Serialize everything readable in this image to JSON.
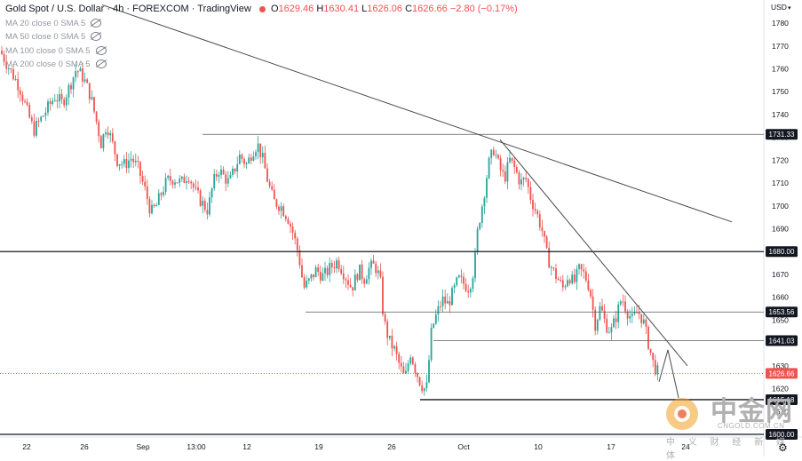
{
  "legend": {
    "symbol": "Gold Spot / U.S. Dollar",
    "interval": "4h",
    "exchange": "FOREXCOM",
    "brand": "TradingView",
    "open_label": "O",
    "open": "1629.46",
    "high_label": "H",
    "high": "1630.41",
    "low_label": "L",
    "low": "1626.06",
    "close_label": "C",
    "close": "1626.66",
    "change": "−2.80 (−0.17%)",
    "indicators": [
      "MA 20 close 0 SMA 5",
      "MA 50 close 0 SMA 5",
      "MA 100 close 0 SMA 5",
      "MA 200 close 0 SMA 5"
    ]
  },
  "currency": "USD",
  "watermark": {
    "brand_cn": "中金网",
    "sub_cn": "中 义 财 经 新 媒 体",
    "domain": "CNGOLD.COM.CN"
  },
  "colors": {
    "up": "#26a69a",
    "down": "#ef5350",
    "line": "#131722",
    "grid_line": "#4a4a4a",
    "price_tag_bg": "#131722",
    "current_tag_bg": "#ef5350"
  },
  "chart_data": {
    "type": "candlestick",
    "symbol": "Gold Spot / U.S. Dollar",
    "timeframe": "4h",
    "y_axis": {
      "range": [
        1600,
        1786
      ],
      "ticks": [
        1600,
        1610,
        1620,
        1630,
        1640,
        1650,
        1660,
        1670,
        1680,
        1690,
        1700,
        1710,
        1720,
        1730,
        1740,
        1750,
        1760,
        1770,
        1780
      ]
    },
    "x_ticks": [
      {
        "label": "22",
        "x": 30
      },
      {
        "label": "26",
        "x": 95
      },
      {
        "label": "Sep",
        "x": 161
      },
      {
        "label": "13:00",
        "x": 221
      },
      {
        "label": "12",
        "x": 278
      },
      {
        "label": "19",
        "x": 359
      },
      {
        "label": "26",
        "x": 441
      },
      {
        "label": "Oct",
        "x": 522
      },
      {
        "label": "10",
        "x": 606
      },
      {
        "label": "17",
        "x": 688
      },
      {
        "label": "24",
        "x": 772
      }
    ],
    "price_labels": [
      {
        "value": 1731.33,
        "text": "1731.33",
        "style": "dark"
      },
      {
        "value": 1680.0,
        "text": "1680.00",
        "style": "dark"
      },
      {
        "value": 1653.56,
        "text": "1653.56",
        "style": "dark"
      },
      {
        "value": 1641.03,
        "text": "1641.03",
        "style": "dark"
      },
      {
        "value": 1626.66,
        "text": "1626.66",
        "style": "current"
      },
      {
        "value": 1615.18,
        "text": "1615.18",
        "style": "dark"
      },
      {
        "value": 1600.0,
        "text": "1600.00",
        "style": "dark"
      }
    ],
    "horizontal_lines": [
      {
        "y": 1731.33,
        "x_start": 228,
        "color": "grey"
      },
      {
        "y": 1680.0,
        "x_start": 0,
        "color": "dark"
      },
      {
        "y": 1653.56,
        "x_start": 344,
        "color": "grey"
      },
      {
        "y": 1641.03,
        "x_start": 488,
        "color": "grey"
      },
      {
        "y": 1615.18,
        "x_start": 473,
        "color": "dark"
      },
      {
        "y": 1600.0,
        "x_start": 0,
        "color": "dark"
      }
    ],
    "trend_lines": [
      {
        "x1": 115,
        "y1": 1788,
        "x2": 824,
        "y2": 1693
      },
      {
        "x1": 563,
        "y1": 1729,
        "x2": 774,
        "y2": 1630
      }
    ],
    "projection": [
      {
        "x": 742,
        "y": 1623
      },
      {
        "x": 752,
        "y": 1637
      },
      {
        "x": 764,
        "y": 1616
      }
    ],
    "candle_path": [
      [
        0,
        1768
      ],
      [
        8,
        1762
      ],
      [
        15,
        1757
      ],
      [
        22,
        1752
      ],
      [
        30,
        1742
      ],
      [
        38,
        1733
      ],
      [
        46,
        1738
      ],
      [
        54,
        1743
      ],
      [
        62,
        1748
      ],
      [
        70,
        1745
      ],
      [
        78,
        1752
      ],
      [
        86,
        1760
      ],
      [
        94,
        1756
      ],
      [
        102,
        1748
      ],
      [
        108,
        1738
      ],
      [
        114,
        1727
      ],
      [
        120,
        1736
      ],
      [
        126,
        1728
      ],
      [
        132,
        1720
      ],
      [
        140,
        1718
      ],
      [
        148,
        1721
      ],
      [
        156,
        1716
      ],
      [
        164,
        1706
      ],
      [
        170,
        1697
      ],
      [
        176,
        1700
      ],
      [
        182,
        1706
      ],
      [
        188,
        1711
      ],
      [
        196,
        1712
      ],
      [
        204,
        1710
      ],
      [
        212,
        1714
      ],
      [
        220,
        1706
      ],
      [
        228,
        1701
      ],
      [
        234,
        1698
      ],
      [
        240,
        1710
      ],
      [
        246,
        1716
      ],
      [
        252,
        1713
      ],
      [
        258,
        1710
      ],
      [
        264,
        1716
      ],
      [
        270,
        1722
      ],
      [
        278,
        1718
      ],
      [
        284,
        1724
      ],
      [
        290,
        1727
      ],
      [
        296,
        1720
      ],
      [
        302,
        1710
      ],
      [
        308,
        1702
      ],
      [
        316,
        1700
      ],
      [
        324,
        1695
      ],
      [
        330,
        1688
      ],
      [
        336,
        1679
      ],
      [
        342,
        1664
      ],
      [
        348,
        1667
      ],
      [
        356,
        1672
      ],
      [
        364,
        1669
      ],
      [
        372,
        1673
      ],
      [
        380,
        1676
      ],
      [
        388,
        1670
      ],
      [
        396,
        1664
      ],
      [
        404,
        1672
      ],
      [
        410,
        1668
      ],
      [
        416,
        1673
      ],
      [
        422,
        1674
      ],
      [
        428,
        1668
      ],
      [
        432,
        1650
      ],
      [
        438,
        1641
      ],
      [
        444,
        1637
      ],
      [
        450,
        1630
      ],
      [
        456,
        1624
      ],
      [
        462,
        1636
      ],
      [
        468,
        1628
      ],
      [
        474,
        1622
      ],
      [
        480,
        1619
      ],
      [
        486,
        1646
      ],
      [
        492,
        1653
      ],
      [
        498,
        1659
      ],
      [
        504,
        1657
      ],
      [
        510,
        1662
      ],
      [
        516,
        1668
      ],
      [
        522,
        1666
      ],
      [
        528,
        1664
      ],
      [
        534,
        1673
      ],
      [
        538,
        1690
      ],
      [
        544,
        1703
      ],
      [
        550,
        1718
      ],
      [
        556,
        1725
      ],
      [
        562,
        1717
      ],
      [
        568,
        1712
      ],
      [
        574,
        1720
      ],
      [
        580,
        1716
      ],
      [
        586,
        1710
      ],
      [
        592,
        1712
      ],
      [
        598,
        1703
      ],
      [
        604,
        1697
      ],
      [
        610,
        1690
      ],
      [
        616,
        1678
      ],
      [
        622,
        1672
      ],
      [
        628,
        1668
      ],
      [
        634,
        1664
      ],
      [
        640,
        1670
      ],
      [
        646,
        1666
      ],
      [
        652,
        1672
      ],
      [
        658,
        1670
      ],
      [
        664,
        1664
      ],
      [
        670,
        1648
      ],
      [
        676,
        1656
      ],
      [
        682,
        1648
      ],
      [
        688,
        1645
      ],
      [
        694,
        1652
      ],
      [
        700,
        1660
      ],
      [
        706,
        1654
      ],
      [
        712,
        1650
      ],
      [
        718,
        1654
      ],
      [
        724,
        1650
      ],
      [
        730,
        1640
      ],
      [
        736,
        1630
      ],
      [
        741,
        1627
      ]
    ]
  }
}
